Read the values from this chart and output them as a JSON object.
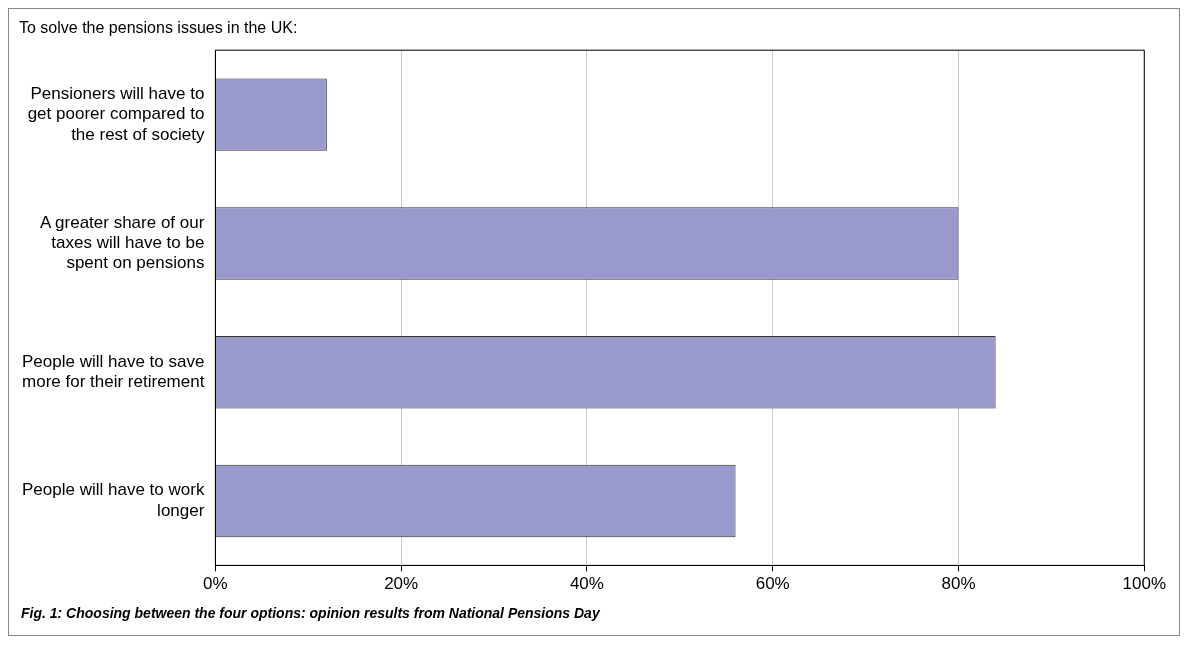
{
  "chart_data": {
    "type": "bar",
    "orientation": "horizontal",
    "title": "To solve the pensions issues in the UK:",
    "categories": [
      "Pensioners will have to get poorer compared to the rest of society",
      "A greater share of our taxes will have to be spent on pensions",
      "People will have to save more for their retirement",
      "People will have to work longer"
    ],
    "values": [
      12,
      80,
      84,
      56
    ],
    "color": "#9999cc",
    "xlim": [
      0,
      100
    ],
    "xticks": [
      {
        "value": 0,
        "label": "0%"
      },
      {
        "value": 20,
        "label": "20%"
      },
      {
        "value": 40,
        "label": "40%"
      },
      {
        "value": 60,
        "label": "60%"
      },
      {
        "value": 80,
        "label": "80%"
      },
      {
        "value": 100,
        "label": "100%"
      }
    ],
    "grid": "x",
    "legend": false,
    "annotations": [
      "Fig. 1: Choosing between the four options: opinion results from National Pensions Day"
    ]
  }
}
